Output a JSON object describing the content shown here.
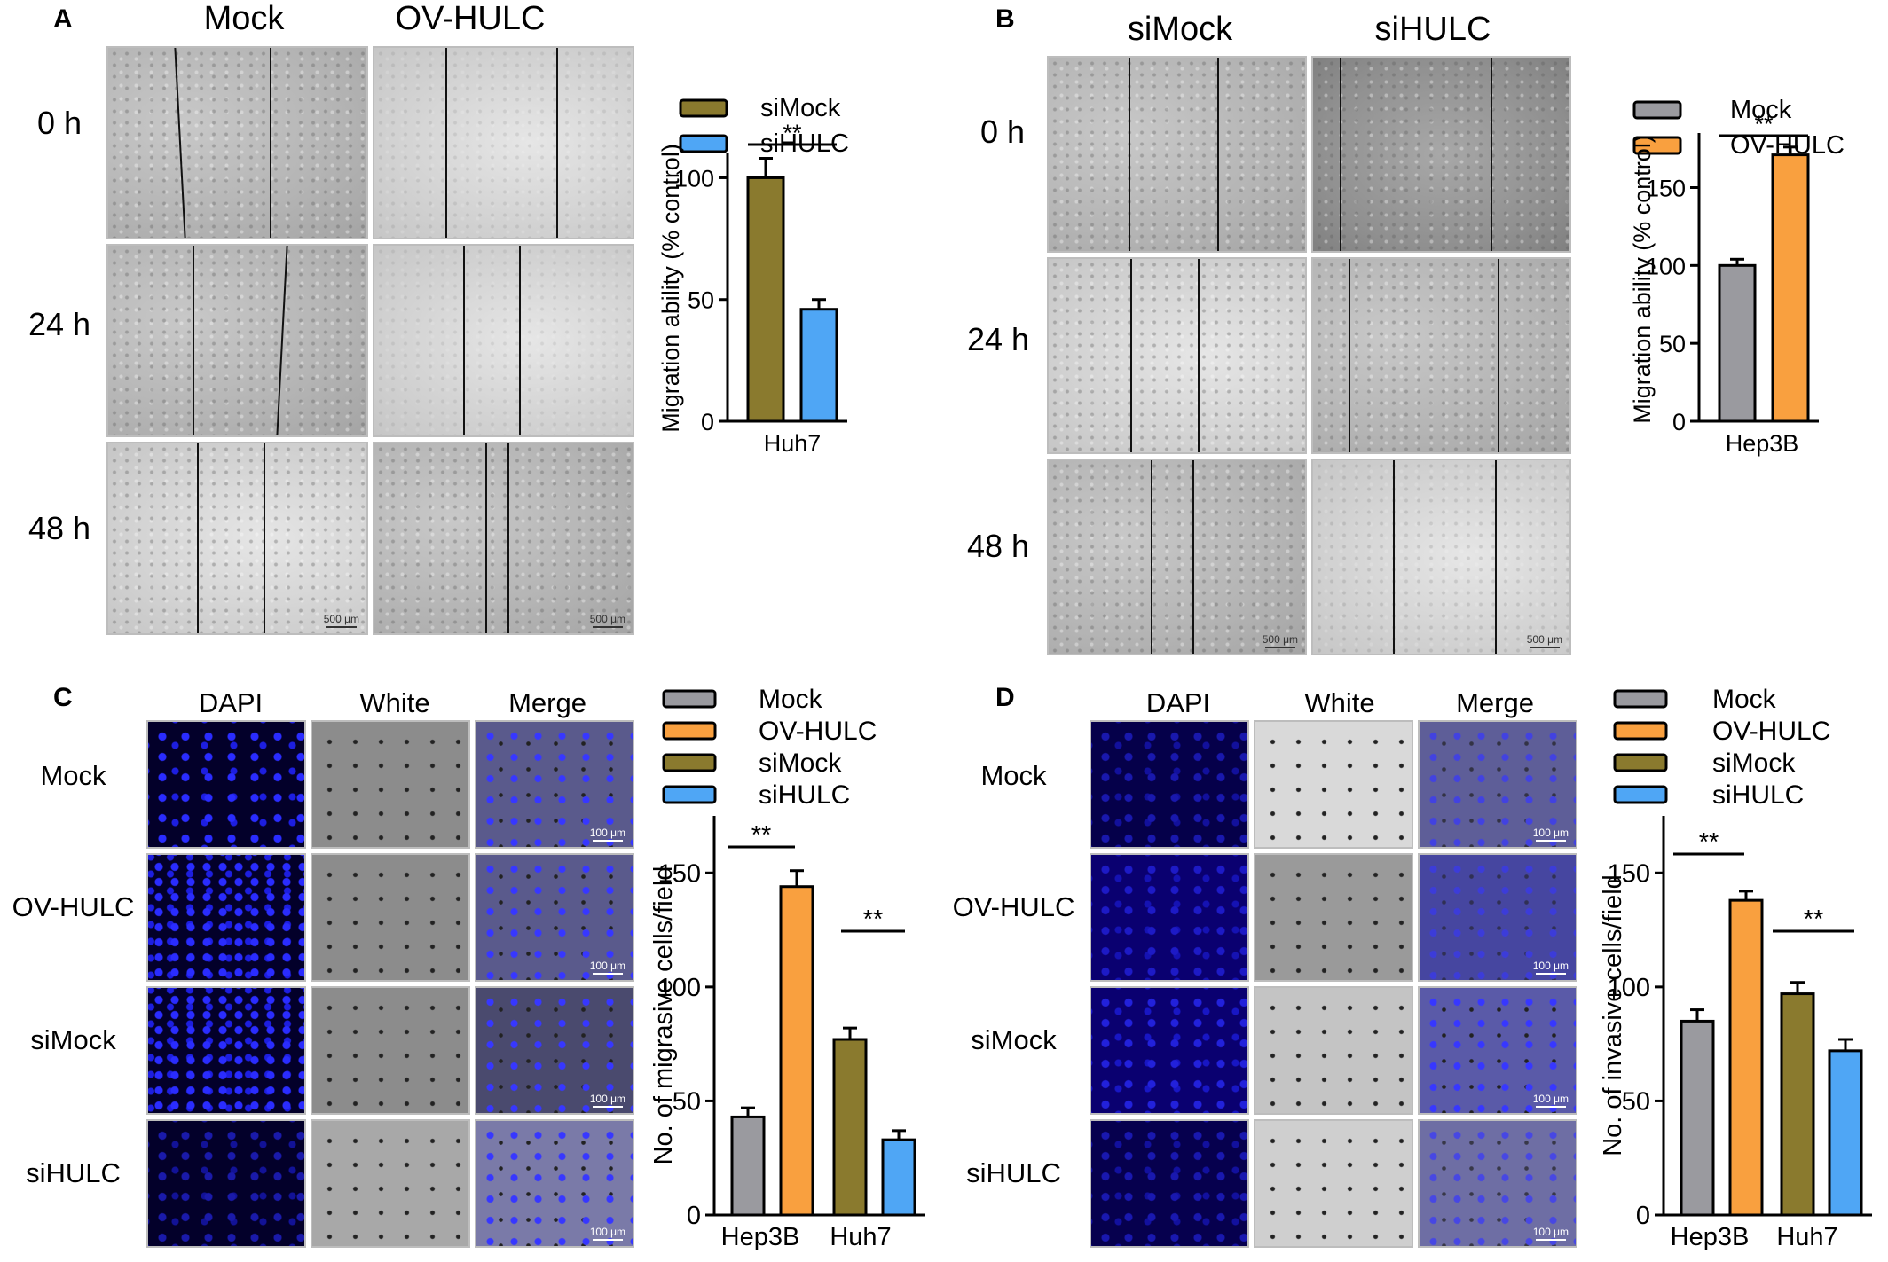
{
  "panels": {
    "A": {
      "letter": "A",
      "col_labels": [
        "Mock",
        "OV-HULC"
      ],
      "row_labels": [
        "0 h",
        "24 h",
        "48 h"
      ],
      "scale_label": "500 μm"
    },
    "B": {
      "letter": "B",
      "col_labels": [
        "siMock",
        "siHULC"
      ],
      "row_labels": [
        "0 h",
        "24 h",
        "48 h"
      ],
      "scale_label": "500 μm"
    },
    "C": {
      "letter": "C",
      "col_labels": [
        "DAPI",
        "White",
        "Merge"
      ],
      "row_labels": [
        "Mock",
        "OV-HULC",
        "siMock",
        "siHULC"
      ],
      "scale_label": "100 μm"
    },
    "D": {
      "letter": "D",
      "col_labels": [
        "DAPI",
        "White",
        "Merge"
      ],
      "row_labels": [
        "Mock",
        "OV-HULC",
        "siMock",
        "siHULC"
      ],
      "scale_label": "100 μm"
    }
  },
  "colors": {
    "mock": "#9a9a9f",
    "ov_hulc": "#f9a03f",
    "simock": "#8a7a2e",
    "sihulc": "#4fa6f5"
  },
  "chart_data": [
    {
      "panel": "A",
      "type": "bar",
      "categories": [
        "Huh7"
      ],
      "series": [
        {
          "name": "siMock",
          "values": [
            100
          ],
          "err": [
            8
          ],
          "color": "#8a7a2e"
        },
        {
          "name": "siHULC",
          "values": [
            46
          ],
          "err": [
            4
          ],
          "color": "#4fa6f5"
        }
      ],
      "ylabel": "Migration ability (% control)",
      "ylim": [
        0,
        110
      ],
      "yticks": [
        0,
        50,
        100
      ],
      "significance": [
        "**"
      ],
      "legend": "top"
    },
    {
      "panel": "B",
      "type": "bar",
      "categories": [
        "Hep3B"
      ],
      "series": [
        {
          "name": "Mock",
          "values": [
            100
          ],
          "err": [
            4
          ],
          "color": "#9a9a9f"
        },
        {
          "name": "OV-HULC",
          "values": [
            171
          ],
          "err": [
            5
          ],
          "color": "#f9a03f"
        }
      ],
      "ylabel": "Migration ability (% control)",
      "ylim": [
        0,
        185
      ],
      "yticks": [
        0,
        50,
        100,
        150
      ],
      "significance": [
        "**"
      ],
      "legend": "top"
    },
    {
      "panel": "C",
      "type": "bar",
      "categories": [
        "Hep3B",
        "Huh7"
      ],
      "series": [
        {
          "name": "Mock",
          "values": [
            43,
            null
          ],
          "err": [
            4,
            null
          ],
          "color": "#9a9a9f"
        },
        {
          "name": "OV-HULC",
          "values": [
            144,
            null
          ],
          "err": [
            7,
            null
          ],
          "color": "#f9a03f"
        },
        {
          "name": "siMock",
          "values": [
            null,
            77
          ],
          "err": [
            null,
            5
          ],
          "color": "#8a7a2e"
        },
        {
          "name": "siHULC",
          "values": [
            null,
            33
          ],
          "err": [
            null,
            4
          ],
          "color": "#4fa6f5"
        }
      ],
      "ylabel": "No. of migrasive cells/field",
      "ylim": [
        0,
        175
      ],
      "yticks": [
        0,
        50,
        100,
        150
      ],
      "significance": [
        "**",
        "**"
      ],
      "legend": "top"
    },
    {
      "panel": "D",
      "type": "bar",
      "categories": [
        "Hep3B",
        "Huh7"
      ],
      "series": [
        {
          "name": "Mock",
          "values": [
            85,
            null
          ],
          "err": [
            5,
            null
          ],
          "color": "#9a9a9f"
        },
        {
          "name": "OV-HULC",
          "values": [
            138,
            null
          ],
          "err": [
            4,
            null
          ],
          "color": "#f9a03f"
        },
        {
          "name": "siMock",
          "values": [
            null,
            97
          ],
          "err": [
            null,
            5
          ],
          "color": "#8a7a2e"
        },
        {
          "name": "siHULC",
          "values": [
            null,
            72
          ],
          "err": [
            null,
            5
          ],
          "color": "#4fa6f5"
        }
      ],
      "ylabel": "No. of invasive cells/field",
      "ylim": [
        0,
        175
      ],
      "yticks": [
        0,
        50,
        100,
        150
      ],
      "significance": [
        "**",
        "**"
      ],
      "legend": "top"
    }
  ]
}
